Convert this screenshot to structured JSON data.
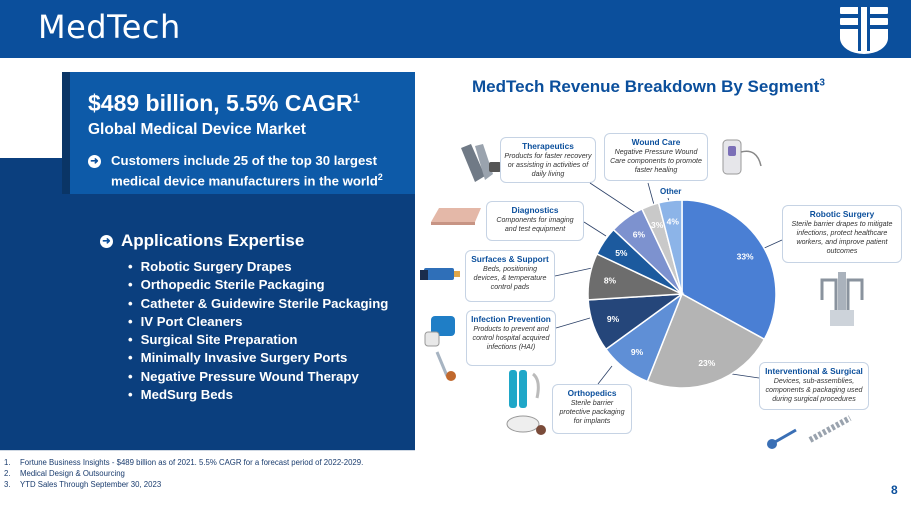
{
  "header": {
    "title": "MedTech"
  },
  "summary": {
    "headline": "$489 billion, 5.5% CAGR",
    "headline_ref": "1",
    "subheadline": "Global Medical Device Market",
    "customers_text": "Customers include 25 of the top 30 largest medical device manufacturers in the world",
    "customers_ref": "2"
  },
  "applications": {
    "title": "Applications Expertise",
    "items": [
      "Robotic Surgery Drapes",
      "Orthopedic Sterile Packaging",
      "Catheter & Guidewire Sterile Packaging",
      "IV Port Cleaners",
      "Surgical Site Preparation",
      "Minimally Invasive Surgery Ports",
      "Negative Pressure Wound Therapy",
      "MedSurg Beds"
    ]
  },
  "footnotes": [
    {
      "num": "1.",
      "text": "Fortune Business Insights - $489 billion as of 2021. 5.5% CAGR for a forecast period of 2022-2029."
    },
    {
      "num": "2.",
      "text": "Medical Design & Outsourcing"
    },
    {
      "num": "3.",
      "text": "YTD Sales Through September 30, 2023"
    }
  ],
  "page_number": "8",
  "chart_data": {
    "type": "pie",
    "style": "donut",
    "title": "MedTech Revenue Breakdown By Segment",
    "title_ref": "3",
    "slices": [
      {
        "name": "Robotic Surgery",
        "value": 33,
        "label": "33%",
        "color": "#4a7fd4"
      },
      {
        "name": "Interventional & Surgical",
        "value": 23,
        "label": "23%",
        "color": "#b4b4b4"
      },
      {
        "name": "Orthopedics",
        "value": 9,
        "label": "9%",
        "color": "#5f8fd6"
      },
      {
        "name": "Infection Prevention",
        "value": 9,
        "label": "9%",
        "color": "#25467a"
      },
      {
        "name": "Surfaces & Support",
        "value": 8,
        "label": "8%",
        "color": "#6d6d6d"
      },
      {
        "name": "Diagnostics",
        "value": 5,
        "label": "5%",
        "color": "#1c5a9e"
      },
      {
        "name": "Therapeutics",
        "value": 6,
        "label": "6%",
        "color": "#7d92cf"
      },
      {
        "name": "Wound Care",
        "value": 3,
        "label": "3%",
        "color": "#c9c9c9"
      },
      {
        "name": "Other",
        "value": 4,
        "label": "4%",
        "color": "#8cb4e8"
      }
    ],
    "legend": "callouts"
  },
  "callouts": {
    "therapeutics": {
      "title": "Therapeutics",
      "desc": "Products for faster recovery or assisting in activities of daily living"
    },
    "wound_care": {
      "title": "Wound Care",
      "desc": "Negative Pressure Wound Care components to promote faster healing"
    },
    "other": {
      "title": "Other"
    },
    "diagnostics": {
      "title": "Diagnostics",
      "desc": "Components for imaging and test equipment"
    },
    "robotic_surgery": {
      "title": "Robotic Surgery",
      "desc": "Sterile barrier drapes to mitigate infections, protect healthcare workers, and improve patient outcomes"
    },
    "surfaces_support": {
      "title": "Surfaces & Support",
      "desc": "Beds, positioning devices, & temperature control pads"
    },
    "infection_prevention": {
      "title": "Infection Prevention",
      "desc": "Products to prevent and control hospital acquired infections (HAI)"
    },
    "interventional_surgical": {
      "title": "Interventional & Surgical",
      "desc": "Devices, sub-assemblies, components & packaging used during surgical procedures"
    },
    "orthopedics": {
      "title": "Orthopedics",
      "desc": "Sterile barrier protective packaging for implants"
    }
  },
  "colors": {
    "brand_blue": "#0b4f9c",
    "panel_dark": "#0b3f7e",
    "panel_mid": "#0d5aa8"
  }
}
